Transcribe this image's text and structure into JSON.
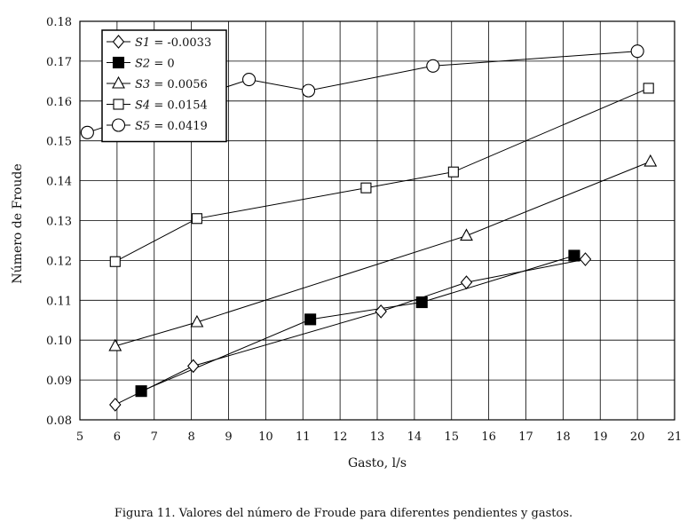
{
  "chart_data": {
    "type": "line",
    "xlabel": "Gasto, l/s",
    "ylabel": "Número de Froude",
    "xlim": [
      5,
      21
    ],
    "ylim": [
      0.08,
      0.18
    ],
    "x_ticks": [
      5,
      6,
      7,
      8,
      9,
      10,
      11,
      12,
      13,
      14,
      15,
      16,
      17,
      18,
      19,
      20,
      21
    ],
    "y_ticks": [
      "0.08",
      "0.09",
      "0.10",
      "0.11",
      "0.12",
      "0.13",
      "0.14",
      "0.15",
      "0.16",
      "0.17",
      "0.18"
    ],
    "grid": true,
    "legend_position": "top-left",
    "series": [
      {
        "name": "S1 = -0.0033",
        "label_var": "S1",
        "label_rest": " = -0.0033",
        "marker": "diamond",
        "points": [
          [
            5.95,
            0.0838
          ],
          [
            8.05,
            0.0935
          ],
          [
            13.1,
            0.1072
          ],
          [
            15.4,
            0.1145
          ],
          [
            18.6,
            0.1203
          ]
        ]
      },
      {
        "name": "S2 = 0",
        "label_var": "S2",
        "label_rest": " = 0",
        "marker": "filled-square",
        "points": [
          [
            6.65,
            0.0872
          ],
          [
            11.2,
            0.1052
          ],
          [
            14.2,
            0.1095
          ],
          [
            18.3,
            0.1212
          ]
        ]
      },
      {
        "name": "S3 = 0.0056",
        "label_var": "S3",
        "label_rest": " = 0.0056",
        "marker": "triangle",
        "points": [
          [
            5.95,
            0.0985
          ],
          [
            8.15,
            0.1045
          ],
          [
            15.4,
            0.1262
          ],
          [
            20.35,
            0.1448
          ]
        ]
      },
      {
        "name": "S4 = 0.0154",
        "label_var": "S4",
        "label_rest": " = 0.0154",
        "marker": "square",
        "points": [
          [
            5.95,
            0.1197
          ],
          [
            8.15,
            0.1305
          ],
          [
            12.7,
            0.1382
          ],
          [
            15.05,
            0.1422
          ],
          [
            20.3,
            0.1632
          ]
        ]
      },
      {
        "name": "S5 = 0.0419",
        "label_var": "S5",
        "label_rest": " = 0.0419",
        "marker": "circle",
        "points": [
          [
            5.2,
            0.1521
          ],
          [
            9.55,
            0.1654
          ],
          [
            11.15,
            0.1626
          ],
          [
            14.5,
            0.1688
          ],
          [
            20.0,
            0.1725
          ]
        ]
      }
    ]
  },
  "caption": "Figura 11. Valores del número de Froude para diferentes pendientes y gastos."
}
